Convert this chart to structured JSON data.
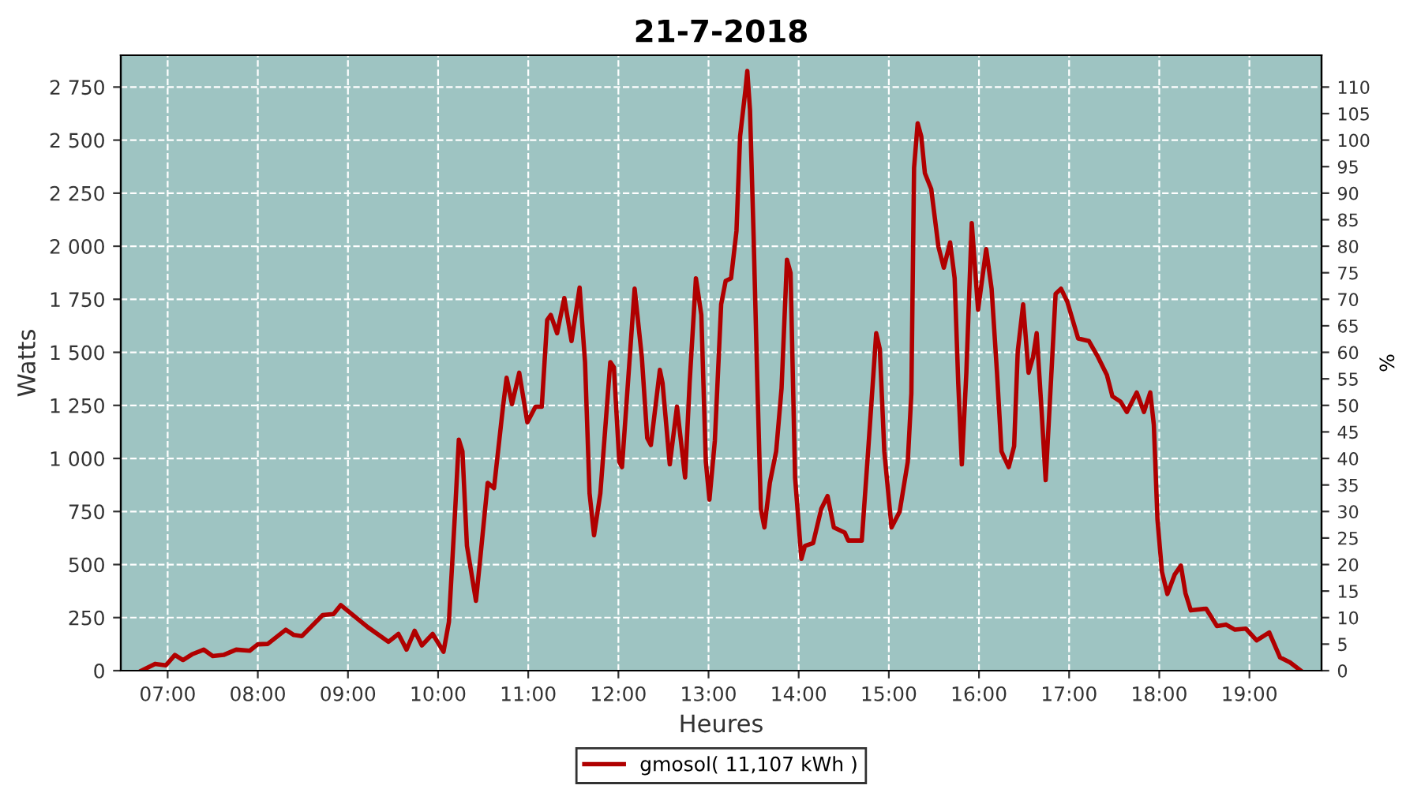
{
  "chart_data": {
    "type": "line",
    "title": "21-7-2018",
    "xlabel": "Heures",
    "ylabel": "Watts",
    "y2label": "%",
    "xlim": [
      6.48,
      19.8
    ],
    "xticks": [
      {
        "value": 7,
        "label": "07:00"
      },
      {
        "value": 8,
        "label": "08:00"
      },
      {
        "value": 9,
        "label": "09:00"
      },
      {
        "value": 10,
        "label": "10:00"
      },
      {
        "value": 11,
        "label": "11:00"
      },
      {
        "value": 12,
        "label": "12:00"
      },
      {
        "value": 13,
        "label": "13:00"
      },
      {
        "value": 14,
        "label": "14:00"
      },
      {
        "value": 15,
        "label": "15:00"
      },
      {
        "value": 16,
        "label": "16:00"
      },
      {
        "value": 17,
        "label": "17:00"
      },
      {
        "value": 18,
        "label": "18:00"
      },
      {
        "value": 19,
        "label": "19:00"
      }
    ],
    "ylim": [
      0,
      2900
    ],
    "yticks": [
      0,
      250,
      500,
      750,
      {
        "value": 1000,
        "label": "1 000"
      },
      {
        "value": 1250,
        "label": "1 250"
      },
      {
        "value": 1500,
        "label": "1 500"
      },
      {
        "value": 1750,
        "label": "1 750"
      },
      {
        "value": 2000,
        "label": "2 000"
      },
      {
        "value": 2250,
        "label": "2 250"
      },
      {
        "value": 2500,
        "label": "2 500"
      },
      {
        "value": 2750,
        "label": "2 750"
      }
    ],
    "y2lim": [
      0,
      116
    ],
    "y2ticks": [
      0,
      5,
      10,
      15,
      20,
      25,
      30,
      35,
      40,
      45,
      50,
      55,
      60,
      65,
      70,
      75,
      80,
      85,
      90,
      95,
      100,
      105,
      110
    ],
    "grid": true,
    "legend": "bottom",
    "marker": "none",
    "line_style": "solid",
    "series": [
      {
        "name": "gmosol( 11,107 kWh )",
        "color": "#b00000",
        "x": [
          6.71,
          6.86,
          6.98,
          7.08,
          7.17,
          7.27,
          7.4,
          7.5,
          7.62,
          7.76,
          7.91,
          8.0,
          8.11,
          8.31,
          8.4,
          8.49,
          8.72,
          8.84,
          8.92,
          9.04,
          9.22,
          9.45,
          9.56,
          9.65,
          9.74,
          9.82,
          9.94,
          10.06,
          10.12,
          10.19,
          10.23,
          10.27,
          10.32,
          10.42,
          10.47,
          10.55,
          10.62,
          10.72,
          10.76,
          10.82,
          10.9,
          10.99,
          11.08,
          11.15,
          11.21,
          11.25,
          11.32,
          11.4,
          11.48,
          11.57,
          11.63,
          11.68,
          11.73,
          11.8,
          11.91,
          11.95,
          12.01,
          12.04,
          12.11,
          12.18,
          12.26,
          12.32,
          12.36,
          12.46,
          12.49,
          12.57,
          12.65,
          12.68,
          12.74,
          12.79,
          12.86,
          12.92,
          12.97,
          13.01,
          13.07,
          13.14,
          13.19,
          13.25,
          13.31,
          13.35,
          13.41,
          13.43,
          13.46,
          13.5,
          13.54,
          13.58,
          13.62,
          13.68,
          13.75,
          13.81,
          13.87,
          13.91,
          13.96,
          14.03,
          14.07,
          14.16,
          14.25,
          14.32,
          14.39,
          14.51,
          14.55,
          14.7,
          14.77,
          14.86,
          14.9,
          14.95,
          15.03,
          15.12,
          15.21,
          15.25,
          15.28,
          15.32,
          15.36,
          15.4,
          15.47,
          15.55,
          15.61,
          15.68,
          15.73,
          15.77,
          15.81,
          15.86,
          15.92,
          15.99,
          16.08,
          16.14,
          16.2,
          16.25,
          16.33,
          16.39,
          16.43,
          16.49,
          16.55,
          16.6,
          16.64,
          16.69,
          16.74,
          16.81,
          16.85,
          16.91,
          16.98,
          17.1,
          17.22,
          17.32,
          17.42,
          17.48,
          17.57,
          17.64,
          17.75,
          17.83,
          17.9,
          17.94,
          17.98,
          18.03,
          18.09,
          18.17,
          18.24,
          18.29,
          18.35,
          18.52,
          18.64,
          18.74,
          18.84,
          18.96,
          19.08,
          19.22,
          19.34,
          19.45,
          19.57
        ],
        "values": [
          0,
          32,
          25,
          74,
          50,
          77,
          99,
          69,
          74,
          99,
          94,
          124,
          126,
          193,
          168,
          163,
          262,
          267,
          309,
          267,
          205,
          136,
          173,
          99,
          188,
          119,
          173,
          89,
          230,
          762,
          1088,
          1033,
          588,
          329,
          539,
          885,
          860,
          1244,
          1380,
          1256,
          1404,
          1170,
          1244,
          1244,
          1652,
          1676,
          1590,
          1756,
          1553,
          1805,
          1454,
          836,
          638,
          836,
          1454,
          1429,
          984,
          959,
          1380,
          1800,
          1478,
          1096,
          1063,
          1417,
          1355,
          972,
          1244,
          1133,
          910,
          1355,
          1849,
          1676,
          984,
          806,
          1083,
          1726,
          1837,
          1849,
          2072,
          2517,
          2739,
          2826,
          2641,
          2047,
          1380,
          762,
          675,
          885,
          1033,
          1330,
          1936,
          1874,
          910,
          527,
          588,
          601,
          762,
          823,
          675,
          651,
          613,
          613,
          1033,
          1590,
          1516,
          1033,
          675,
          749,
          984,
          1306,
          2369,
          2579,
          2517,
          2344,
          2270,
          1998,
          1899,
          2018,
          1849,
          1355,
          972,
          1404,
          2109,
          1701,
          1986,
          1800,
          1404,
          1033,
          959,
          1058,
          1504,
          1726,
          1404,
          1478,
          1590,
          1256,
          898,
          1454,
          1775,
          1800,
          1738,
          1565,
          1553,
          1478,
          1392,
          1293,
          1268,
          1219,
          1311,
          1219,
          1311,
          1157,
          712,
          465,
          361,
          452,
          495,
          366,
          284,
          292,
          210,
          217,
          193,
          198,
          143,
          180,
          62,
          39,
          0
        ]
      }
    ]
  }
}
